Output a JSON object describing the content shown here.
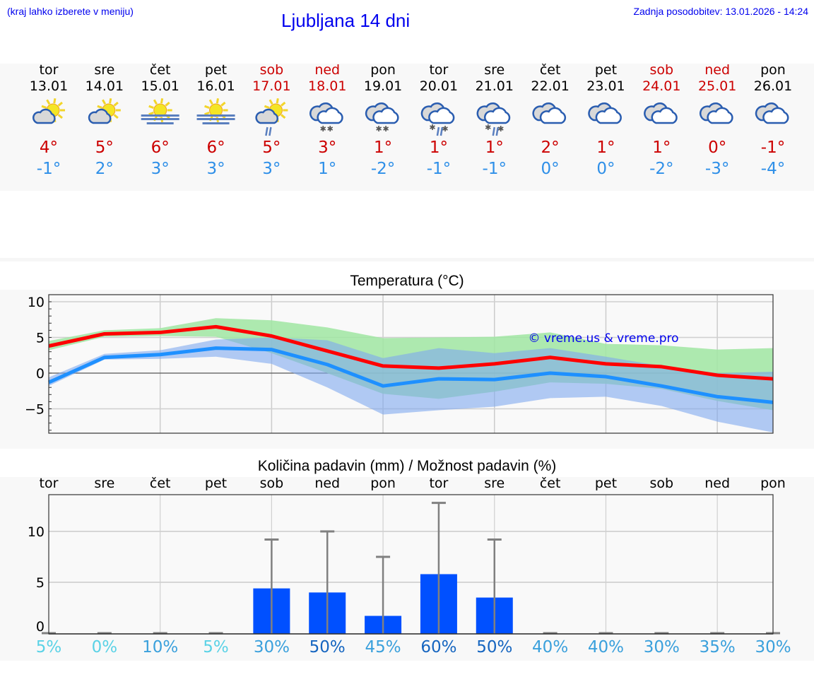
{
  "header": {
    "hint": "(kraj lahko izberete v meniju)",
    "title": "Ljubljana 14 dni",
    "updated": "Zadnja posodobitev: 13.01.2026 - 14:24"
  },
  "colors": {
    "weekend": "#cc0000",
    "max": "#ff0000",
    "min": "#1e90ff",
    "bar": "#0050ff",
    "max_band": "#acebad",
    "min_band": "#adc6f3",
    "overlap": "#7dc9a8"
  },
  "days": [
    {
      "dow": "tor",
      "date": "13.01",
      "weekend": false,
      "icon": "sun-cloud",
      "max": "4°",
      "min": "-1°",
      "prob": "5%",
      "prob_color": "#5ad2e6"
    },
    {
      "dow": "sre",
      "date": "14.01",
      "weekend": false,
      "icon": "sun-cloud",
      "max": "5°",
      "min": "2°",
      "prob": "0%",
      "prob_color": "#5ad2e6"
    },
    {
      "dow": "čet",
      "date": "15.01",
      "weekend": false,
      "icon": "sun-fog",
      "max": "6°",
      "min": "3°",
      "prob": "10%",
      "prob_color": "#3aa0dc"
    },
    {
      "dow": "pet",
      "date": "16.01",
      "weekend": false,
      "icon": "sun-fog",
      "max": "6°",
      "min": "3°",
      "prob": "5%",
      "prob_color": "#5ad2e6"
    },
    {
      "dow": "sob",
      "date": "17.01",
      "weekend": true,
      "icon": "sun-cloud-rain",
      "max": "5°",
      "min": "3°",
      "prob": "30%",
      "prob_color": "#3aa0dc"
    },
    {
      "dow": "ned",
      "date": "18.01",
      "weekend": true,
      "icon": "cloud-snow",
      "max": "3°",
      "min": "1°",
      "prob": "50%",
      "prob_color": "#1565c0"
    },
    {
      "dow": "pon",
      "date": "19.01",
      "weekend": false,
      "icon": "cloud-snow",
      "max": "1°",
      "min": "-2°",
      "prob": "45%",
      "prob_color": "#3aa0dc"
    },
    {
      "dow": "tor",
      "date": "20.01",
      "weekend": false,
      "icon": "cloud-sleet",
      "max": "1°",
      "min": "-1°",
      "prob": "60%",
      "prob_color": "#1565c0"
    },
    {
      "dow": "sre",
      "date": "21.01",
      "weekend": false,
      "icon": "cloud-sleet",
      "max": "1°",
      "min": "-1°",
      "prob": "50%",
      "prob_color": "#1565c0"
    },
    {
      "dow": "čet",
      "date": "22.01",
      "weekend": false,
      "icon": "cloud",
      "max": "2°",
      "min": "0°",
      "prob": "40%",
      "prob_color": "#3aa0dc"
    },
    {
      "dow": "pet",
      "date": "23.01",
      "weekend": false,
      "icon": "cloud",
      "max": "1°",
      "min": "0°",
      "prob": "40%",
      "prob_color": "#3aa0dc"
    },
    {
      "dow": "sob",
      "date": "24.01",
      "weekend": true,
      "icon": "cloud",
      "max": "1°",
      "min": "-2°",
      "prob": "30%",
      "prob_color": "#3aa0dc"
    },
    {
      "dow": "ned",
      "date": "25.01",
      "weekend": true,
      "icon": "cloud",
      "max": "0°",
      "min": "-3°",
      "prob": "35%",
      "prob_color": "#3aa0dc"
    },
    {
      "dow": "pon",
      "date": "26.01",
      "weekend": false,
      "icon": "cloud",
      "max": "-1°",
      "min": "-4°",
      "prob": "30%",
      "prob_color": "#3aa0dc"
    }
  ],
  "chart_data": [
    {
      "type": "line",
      "title": "Temperatura (°C)",
      "watermark": "© vreme.us & vreme.pro",
      "ylim": [
        -8.5,
        11
      ],
      "yticks": [
        10,
        5,
        0,
        -5
      ],
      "ytick_labels": [
        "10",
        "5",
        "0",
        "−5"
      ],
      "grid": true,
      "series": [
        {
          "values": [
            3.8,
            5.5,
            5.7,
            6.5,
            5.2,
            3.1,
            1.0,
            0.7,
            1.3,
            2.2,
            1.3,
            0.9,
            -0.3,
            -0.8
          ],
          "color": "#ff0000"
        },
        {
          "values": [
            -1.3,
            2.2,
            2.6,
            3.5,
            3.3,
            1.2,
            -1.8,
            -0.8,
            -0.9,
            0.0,
            -0.5,
            -1.8,
            -3.3,
            -4.1
          ],
          "color": "#1e90ff"
        }
      ],
      "bands": [
        {
          "upper": [
            4.5,
            6.0,
            6.3,
            7.7,
            7.4,
            6.4,
            4.9,
            5.0,
            5.1,
            5.7,
            4.1,
            3.9,
            3.3,
            3.5
          ],
          "lower": [
            3.2,
            5.1,
            5.2,
            5.1,
            2.8,
            0.0,
            -2.9,
            -3.6,
            -2.6,
            -1.3,
            -1.5,
            -2.2,
            -3.9,
            -5.2
          ],
          "color": "#a0e6a2"
        },
        {
          "upper": [
            -0.6,
            2.7,
            3.2,
            4.7,
            5.0,
            4.6,
            2.1,
            3.5,
            2.8,
            3.5,
            2.3,
            1.0,
            0.0,
            0.2
          ],
          "lower": [
            -1.8,
            1.9,
            2.0,
            2.3,
            1.3,
            -2.0,
            -5.8,
            -5.2,
            -4.7,
            -3.5,
            -3.3,
            -4.6,
            -6.8,
            -8.3
          ],
          "color": "#7ea8ee"
        }
      ]
    },
    {
      "type": "bar",
      "title": "Količina padavin (mm) / Možnost padavin (%)",
      "categories": [
        "tor",
        "sre",
        "čet",
        "pet",
        "sob",
        "ned",
        "pon",
        "tor",
        "sre",
        "čet",
        "pet",
        "sob",
        "ned",
        "pon"
      ],
      "values": [
        0,
        0,
        0,
        0,
        4.4,
        4.0,
        1.7,
        5.8,
        3.5,
        0,
        0,
        0,
        0,
        0
      ],
      "error_max": [
        0,
        0,
        0,
        0,
        9.2,
        10.0,
        7.5,
        12.8,
        9.2,
        0,
        0,
        0,
        0,
        0
      ],
      "ylim": [
        -0.6,
        13.8
      ],
      "yticks": [
        0,
        5,
        10
      ],
      "ytick_labels": [
        "0",
        "5",
        "10"
      ],
      "grid": true
    }
  ]
}
